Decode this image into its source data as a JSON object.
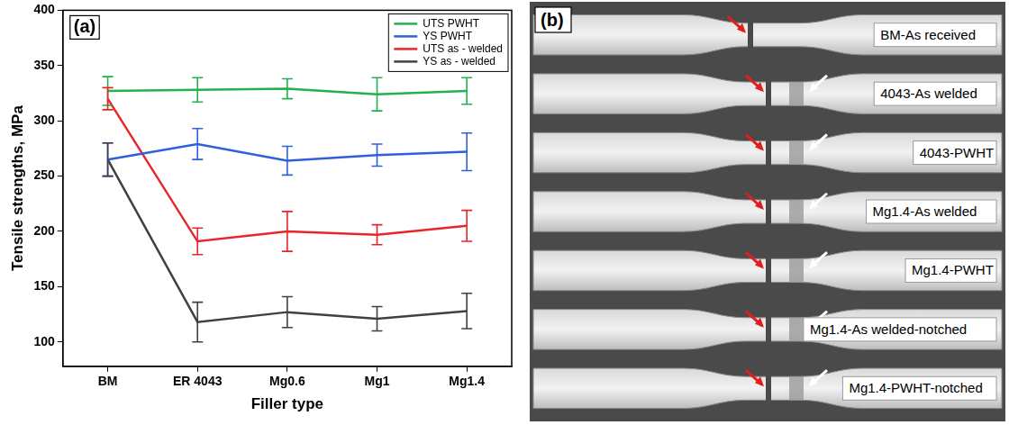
{
  "chart_data": {
    "type": "line",
    "annotations": [
      "(a)"
    ],
    "x_label": "Filler type",
    "y_label": "Tensile strengths, MPa",
    "categories": [
      "BM",
      "ER 4043",
      "Mg0.6",
      "Mg1",
      "Mg1.4"
    ],
    "series": [
      {
        "name": "UTS PWHT",
        "color": "#22b14c",
        "values": [
          327,
          328,
          329,
          324,
          327
        ],
        "errors": [
          13,
          11,
          9,
          15,
          12
        ]
      },
      {
        "name": "YS PWHT",
        "color": "#2f5fdb",
        "values": [
          265,
          279,
          264,
          269,
          272
        ],
        "errors": [
          15,
          14,
          13,
          10,
          17
        ]
      },
      {
        "name": "UTS as - welded",
        "color": "#e8262a",
        "values": [
          320,
          191,
          200,
          197,
          205
        ],
        "errors": [
          10,
          12,
          18,
          9,
          14
        ]
      },
      {
        "name": "YS as - welded",
        "color": "#404040",
        "values": [
          265,
          118,
          127,
          121,
          128
        ],
        "errors": [
          15,
          18,
          14,
          11,
          16
        ]
      }
    ],
    "ylim": [
      78,
      400
    ],
    "yticks": [
      100,
      150,
      200,
      250,
      300,
      350,
      400
    ],
    "grid": false,
    "legend": "upper right"
  },
  "panel_b": {
    "letter": "(b)",
    "specimen_labels": [
      "BM-As received",
      "4043-As welded",
      "4043-PWHT",
      "Mg1.4-As welded",
      "Mg1.4-PWHT",
      "Mg1.4-As welded-notched",
      "Mg1.4-PWHT-notched"
    ]
  }
}
